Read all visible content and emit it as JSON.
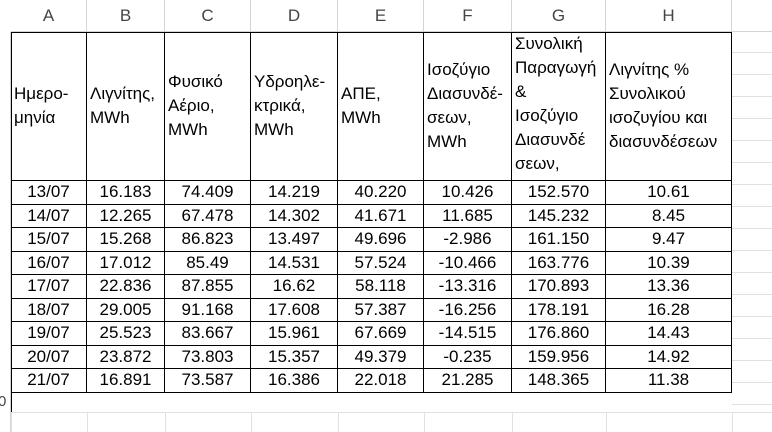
{
  "columns": [
    "A",
    "B",
    "C",
    "D",
    "E",
    "F",
    "G",
    "H"
  ],
  "headers": [
    "Ημερο-\nμηνία",
    "Λιγνίτης,\nMWh",
    "Φυσικό\nΑέριο,\nMWh",
    "Υδροηλε-\nκτρικά,\nMWh",
    "ΑΠΕ,\nMWh",
    "Ισοζύγιο\nΔιασυνδέ-\nσεων,\nMWh",
    "Συνολική\nΠαραγωγή\n&\nΙσοζύγιο\nΔιασυνδέ\nσεων,",
    "Λιγνίτης      %\nΣυνολικού\nισοζυγίου   και\nδιασυνδέσεων"
  ],
  "rows": [
    [
      "13/07",
      "16.183",
      "74.409",
      "14.219",
      "40.220",
      "10.426",
      "152.570",
      "10.61"
    ],
    [
      "14/07",
      "12.265",
      "67.478",
      "14.302",
      "41.671",
      "11.685",
      "145.232",
      "8.45"
    ],
    [
      "15/07",
      "15.268",
      "86.823",
      "13.497",
      "49.696",
      "-2.986",
      "161.150",
      "9.47"
    ],
    [
      "16/07",
      "17.012",
      "85.49",
      "14.531",
      "57.524",
      "-10.466",
      "163.776",
      "10.39"
    ],
    [
      "17/07",
      "22.836",
      "87.855",
      "16.62",
      "58.118",
      "-13.316",
      "170.893",
      "13.36"
    ],
    [
      "18/07",
      "29.005",
      "91.168",
      "17.608",
      "57.387",
      "-16.256",
      "178.191",
      "16.28"
    ],
    [
      "19/07",
      "25.523",
      "83.667",
      "15.961",
      "67.669",
      "-14.515",
      "176.860",
      "14.43"
    ],
    [
      "20/07",
      "23.872",
      "73.803",
      "15.357",
      "49.379",
      "-0.235",
      "159.956",
      "14.92"
    ],
    [
      "21/07",
      "16.891",
      "73.587",
      "16.386",
      "22.018",
      "21.285",
      "148.365",
      "11.38"
    ]
  ],
  "row_number_visible": "0"
}
